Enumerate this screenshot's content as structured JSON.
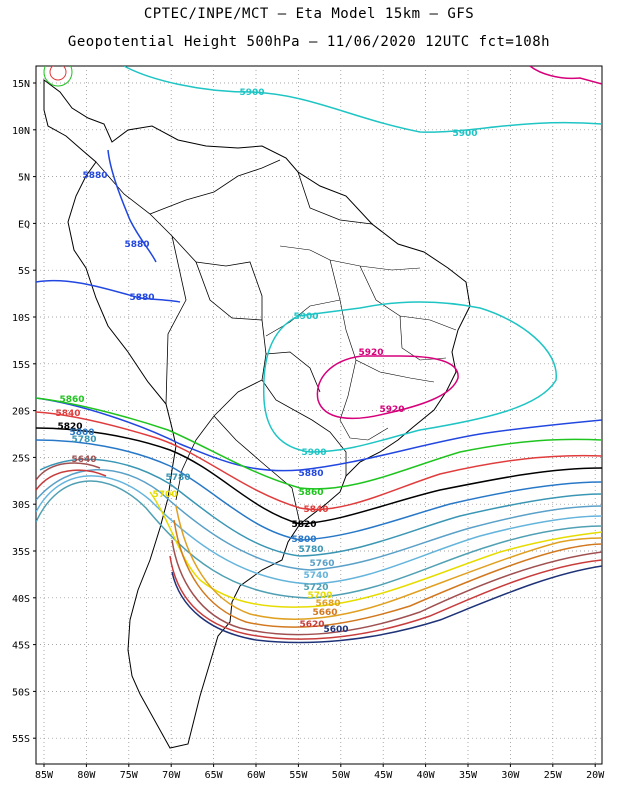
{
  "header": {
    "title_line1": "CPTEC/INPE/MCT –  Eta Model 15km – GFS",
    "title_line2": "Geopotential Height 500hPa – 11/06/2020 12UTC fct=108h"
  },
  "map": {
    "region": "South America",
    "lat_labels": [
      "15N",
      "10N",
      "5N",
      "EQ",
      "5S",
      "10S",
      "15S",
      "20S",
      "25S",
      "30S",
      "35S",
      "40S",
      "45S",
      "50S",
      "55S"
    ],
    "lon_labels": [
      "85W",
      "80W",
      "75W",
      "70W",
      "65W",
      "60W",
      "55W",
      "50W",
      "45W",
      "40W",
      "35W",
      "30W",
      "25W",
      "20W"
    ],
    "grid": "dotted",
    "contour_interval_m": 20,
    "contours": [
      {
        "value": "5920",
        "color": "#d6007a"
      },
      {
        "value": "5900",
        "color": "#1fc4c4"
      },
      {
        "value": "5880",
        "color": "#2247e0"
      },
      {
        "value": "5860",
        "color": "#1fc41f"
      },
      {
        "value": "5840",
        "color": "#e03c3c"
      },
      {
        "value": "5820",
        "color": "#000000"
      },
      {
        "value": "5800",
        "color": "#2878c8"
      },
      {
        "value": "5780",
        "color": "#3a96b4"
      },
      {
        "value": "5760",
        "color": "#5aa0c8"
      },
      {
        "value": "5740",
        "color": "#64b4dc"
      },
      {
        "value": "5720",
        "color": "#50a0b4"
      },
      {
        "value": "5700",
        "color": "#e6dc00"
      },
      {
        "value": "5680",
        "color": "#e0a020"
      },
      {
        "value": "5660",
        "color": "#d2781e"
      },
      {
        "value": "5640",
        "color": "#a05050"
      },
      {
        "value": "5620",
        "color": "#c83c3c"
      },
      {
        "value": "5600",
        "color": "#1e3278"
      }
    ]
  }
}
